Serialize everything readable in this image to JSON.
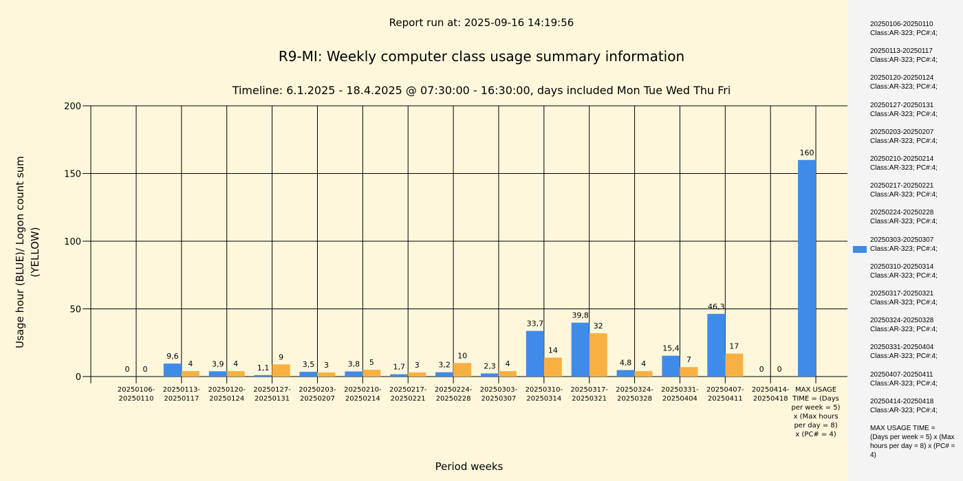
{
  "header": {
    "run": "Report run at: 2025-09-16 14:19:56",
    "title": "R9-MI: Weekly computer class usage summary information",
    "subtitle": "Timeline:  6.1.2025  - 18.4.2025  @  07:30:00 -  16:30:00, days included Mon Tue Wed Thu Fri"
  },
  "chart_data": {
    "type": "bar",
    "title": "R9-MI: Weekly computer class usage summary information",
    "xlabel": "Period weeks",
    "ylabel": "Usage hour (BLUE)/ Logon count sum (YELLOW)",
    "ylim": [
      0,
      200
    ],
    "yticks": [
      "0",
      "50",
      "100",
      "150",
      "200"
    ],
    "categories": [
      "20250106- 20250110",
      "20250113- 20250117",
      "20250120- 20250124",
      "20250127- 20250131",
      "20250203- 20250207",
      "20250210- 20250214",
      "20250217- 20250221",
      "20250224- 20250228",
      "20250303- 20250307",
      "20250310- 20250314",
      "20250317- 20250321",
      "20250324- 20250328",
      "20250331- 20250404",
      "20250407- 20250411",
      "20250414- 20250418",
      "MAX USAGE TIME = (Days per week = 5) x (Max hours per day = 8) x (PC# = 4)"
    ],
    "series": [
      {
        "name": "Usage hour",
        "color": "#3f8bea",
        "values": [
          0,
          9.6,
          3.9,
          1.1,
          3.5,
          3.8,
          1.7,
          3.2,
          2.3,
          33.7,
          39.8,
          4.8,
          15.4,
          46.3,
          0,
          160
        ],
        "labels": [
          "0",
          "9,6",
          "3,9",
          "1,1",
          "3,5",
          "3,8",
          "1,7",
          "3,2",
          "2,3",
          "33,7",
          "39,8",
          "4,8",
          "15,4",
          "46,3",
          "0",
          "160"
        ]
      },
      {
        "name": "Logon count sum",
        "color": "#f9b042",
        "values": [
          0,
          4,
          4,
          9,
          3,
          5,
          3,
          10,
          4,
          14,
          32,
          4,
          7,
          17,
          0,
          null
        ],
        "labels": [
          "0",
          "4",
          "4",
          "9",
          "3",
          "5",
          "3",
          "10",
          "4",
          "14",
          "32",
          "4",
          "7",
          "17",
          "0",
          null
        ]
      }
    ]
  },
  "legend": {
    "items": [
      {
        "line1": "20250106-20250110",
        "line2": "Class:AR-323; PC#:4;"
      },
      {
        "line1": "20250113-20250117",
        "line2": "Class:AR-323; PC#:4;"
      },
      {
        "line1": "20250120-20250124",
        "line2": "Class:AR-323; PC#:4;"
      },
      {
        "line1": "20250127-20250131",
        "line2": "Class:AR-323; PC#:4;"
      },
      {
        "line1": "20250203-20250207",
        "line2": "Class:AR-323; PC#:4;"
      },
      {
        "line1": "20250210-20250214",
        "line2": "Class:AR-323; PC#:4;"
      },
      {
        "line1": "20250217-20250221",
        "line2": "Class:AR-323; PC#:4;"
      },
      {
        "line1": "20250224-20250228",
        "line2": "Class:AR-323; PC#:4;"
      },
      {
        "line1": "20250303-20250307",
        "line2": "Class:AR-323; PC#:4;"
      },
      {
        "line1": "20250310-20250314",
        "line2": "Class:AR-323; PC#:4;"
      },
      {
        "line1": "20250317-20250321",
        "line2": "Class:AR-323; PC#:4;"
      },
      {
        "line1": "20250324-20250328",
        "line2": "Class:AR-323; PC#:4;"
      },
      {
        "line1": "20250331-20250404",
        "line2": "Class:AR-323; PC#:4;"
      },
      {
        "line1": "20250407-20250411",
        "line2": "Class:AR-323; PC#:4;"
      },
      {
        "line1": "20250414-20250418",
        "line2": "Class:AR-323; PC#:4;"
      },
      {
        "line1": "MAX USAGE TIME =",
        "line2": " (Days per week = 5) x (Max hours per day = 8) x (PC# = 4)"
      }
    ],
    "swatch_index": 8
  }
}
